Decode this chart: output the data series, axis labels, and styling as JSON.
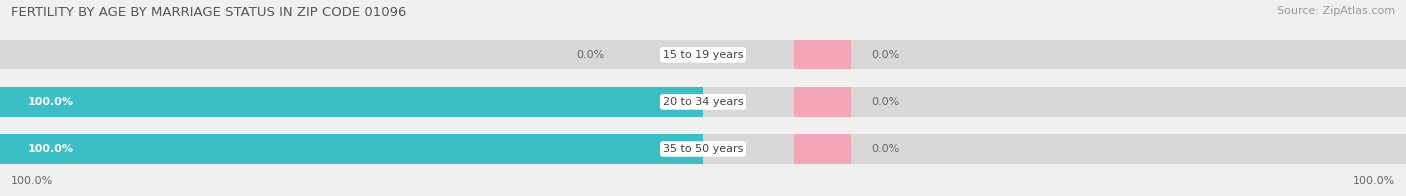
{
  "title": "FERTILITY BY AGE BY MARRIAGE STATUS IN ZIP CODE 01096",
  "source": "Source: ZipAtlas.com",
  "categories": [
    "15 to 19 years",
    "20 to 34 years",
    "35 to 50 years"
  ],
  "married_values": [
    0.0,
    100.0,
    100.0
  ],
  "unmarried_values": [
    0.0,
    0.0,
    0.0
  ],
  "married_color": "#3bbfc7",
  "unmarried_color": "#f4a7b9",
  "bar_bg_color": "#e0e0e0",
  "title_fontsize": 9.5,
  "source_fontsize": 8,
  "label_fontsize": 8,
  "category_fontsize": 8,
  "legend_fontsize": 8.5,
  "background_color": "#f0f0f0",
  "bar_background": "#d8d8d8",
  "axis_label_left": "100.0%",
  "axis_label_right": "100.0%"
}
